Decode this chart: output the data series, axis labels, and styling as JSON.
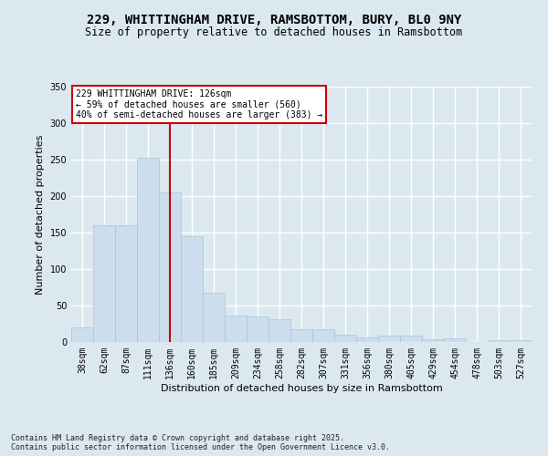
{
  "title_line1": "229, WHITTINGHAM DRIVE, RAMSBOTTOM, BURY, BL0 9NY",
  "title_line2": "Size of property relative to detached houses in Ramsbottom",
  "xlabel": "Distribution of detached houses by size in Ramsbottom",
  "ylabel": "Number of detached properties",
  "categories": [
    "38sqm",
    "62sqm",
    "87sqm",
    "111sqm",
    "136sqm",
    "160sqm",
    "185sqm",
    "209sqm",
    "234sqm",
    "258sqm",
    "282sqm",
    "307sqm",
    "331sqm",
    "356sqm",
    "380sqm",
    "405sqm",
    "429sqm",
    "454sqm",
    "478sqm",
    "503sqm",
    "527sqm"
  ],
  "values": [
    20,
    160,
    160,
    252,
    205,
    145,
    67,
    36,
    35,
    31,
    17,
    17,
    10,
    6,
    9,
    9,
    4,
    5,
    0,
    3,
    2
  ],
  "bar_color": "#ccdded",
  "bar_edgecolor": "#a8c4d8",
  "vline_x_index": 4,
  "vline_color": "#cc0000",
  "annotation_text": "229 WHITTINGHAM DRIVE: 126sqm\n← 59% of detached houses are smaller (560)\n40% of semi-detached houses are larger (383) →",
  "annotation_box_facecolor": "#ffffff",
  "annotation_box_edgecolor": "#cc0000",
  "bg_color": "#dce8f0",
  "plot_bg_color": "#dce8f0",
  "grid_color": "#ffffff",
  "ylim": [
    0,
    350
  ],
  "yticks": [
    0,
    50,
    100,
    150,
    200,
    250,
    300,
    350
  ],
  "footnote": "Contains HM Land Registry data © Crown copyright and database right 2025.\nContains public sector information licensed under the Open Government Licence v3.0.",
  "title_fontsize": 10,
  "subtitle_fontsize": 8.5,
  "axis_label_fontsize": 8,
  "tick_fontsize": 7,
  "footnote_fontsize": 6
}
